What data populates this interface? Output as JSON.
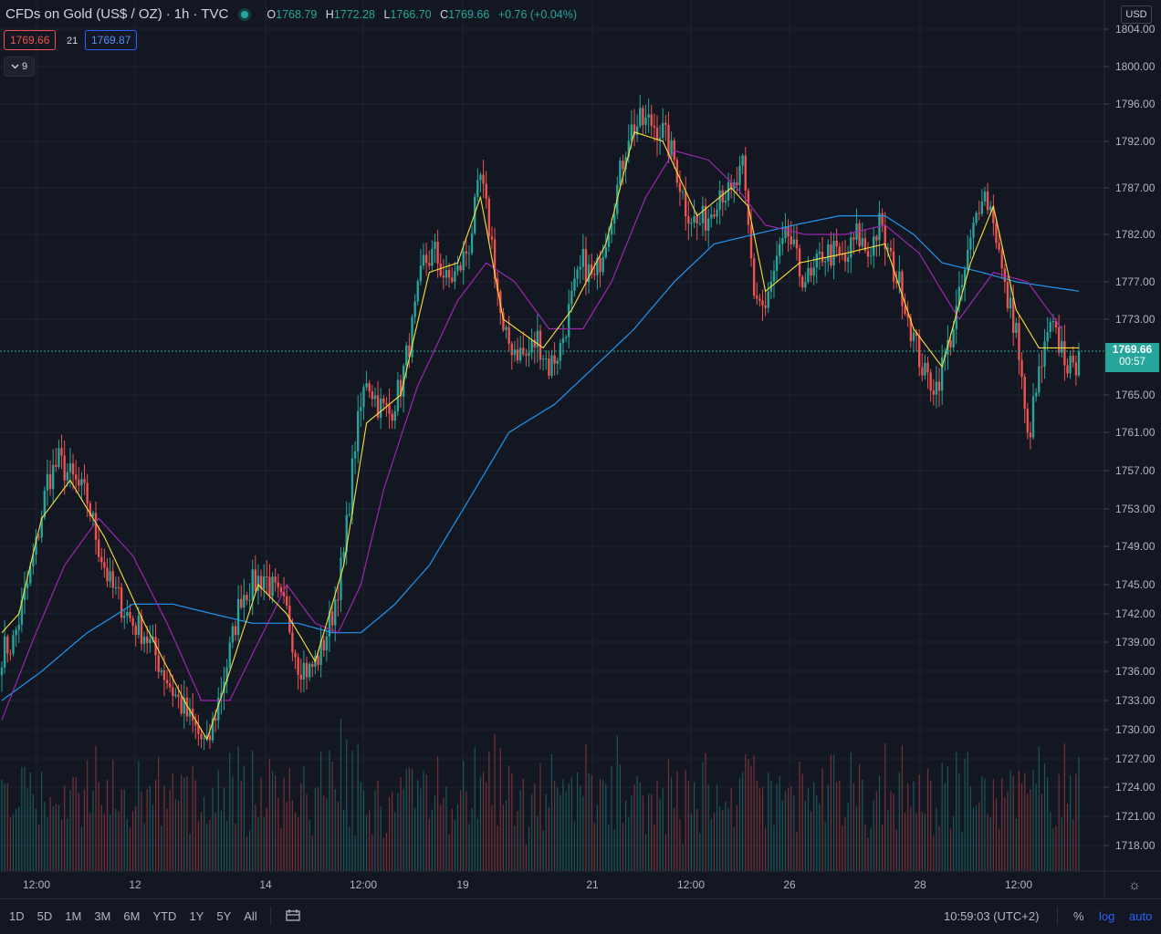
{
  "header": {
    "symbol": "CFDs on Gold (US$ / OZ)",
    "interval": "1h",
    "exchange": "TVC",
    "separator": "·",
    "o_label": "O",
    "o_value": "1768.79",
    "h_label": "H",
    "h_value": "1772.28",
    "l_label": "L",
    "l_value": "1766.70",
    "c_label": "C",
    "c_value": "1769.66",
    "change": "+0.76 (+0.04%)"
  },
  "quote": {
    "bid": "1769.66",
    "spread": "21",
    "ask": "1769.87"
  },
  "legend_toggle": {
    "count": "9",
    "icon": "chevron-down-icon"
  },
  "currency": "USD",
  "last_price": {
    "price": "1769.66",
    "countdown": "00:57"
  },
  "bottom_bar": {
    "ranges": [
      "1D",
      "5D",
      "1M",
      "3M",
      "6M",
      "YTD",
      "1Y",
      "5Y",
      "All"
    ],
    "time": "10:59:03 (UTC+2)",
    "percent": "%",
    "log": "log",
    "auto": "auto"
  },
  "colors": {
    "background": "#131722",
    "up": "#26a69a",
    "down": "#ef5350",
    "ma_fast": "#fbe13b",
    "ma_mid": "#9c27b0",
    "ma_slow": "#2196f3",
    "grid": "#1f2330"
  },
  "chart_data": {
    "type": "candlestick",
    "y_ticks": [
      "1804.00",
      "1800.00",
      "1796.00",
      "1792.00",
      "1787.00",
      "1782.00",
      "1777.00",
      "1773.00",
      "1769.66",
      "1765.00",
      "1761.00",
      "1757.00",
      "1753.00",
      "1749.00",
      "1745.00",
      "1742.00",
      "1739.00",
      "1736.00",
      "1733.00",
      "1730.00",
      "1727.00",
      "1724.00",
      "1721.00",
      "1718.00"
    ],
    "x_ticks": [
      "12:00",
      "12",
      "14",
      "12:00",
      "19",
      "21",
      "12:00",
      "26",
      "28",
      "12:00"
    ],
    "ylim": [
      1716,
      1806
    ],
    "keypoints": [
      [
        0,
        1738
      ],
      [
        4,
        1739
      ],
      [
        9,
        1745
      ],
      [
        12,
        1749
      ],
      [
        16,
        1756
      ],
      [
        20,
        1758
      ],
      [
        25,
        1756
      ],
      [
        30,
        1754
      ],
      [
        34,
        1749
      ],
      [
        38,
        1745
      ],
      [
        42,
        1743
      ],
      [
        46,
        1741
      ],
      [
        50,
        1740
      ],
      [
        55,
        1737
      ],
      [
        60,
        1734
      ],
      [
        64,
        1732
      ],
      [
        68,
        1730
      ],
      [
        72,
        1728
      ],
      [
        76,
        1733
      ],
      [
        80,
        1738
      ],
      [
        84,
        1744
      ],
      [
        88,
        1745
      ],
      [
        92,
        1746
      ],
      [
        96,
        1744
      ],
      [
        100,
        1742
      ],
      [
        104,
        1737
      ],
      [
        108,
        1736
      ],
      [
        112,
        1738
      ],
      [
        116,
        1742
      ],
      [
        120,
        1748
      ],
      [
        124,
        1760
      ],
      [
        128,
        1767
      ],
      [
        132,
        1764
      ],
      [
        136,
        1763
      ],
      [
        140,
        1766
      ],
      [
        144,
        1772
      ],
      [
        148,
        1779
      ],
      [
        152,
        1780
      ],
      [
        156,
        1777
      ],
      [
        160,
        1778
      ],
      [
        164,
        1781
      ],
      [
        168,
        1788
      ],
      [
        172,
        1781
      ],
      [
        176,
        1771
      ],
      [
        180,
        1770
      ],
      [
        184,
        1769
      ],
      [
        188,
        1771
      ],
      [
        192,
        1768
      ],
      [
        196,
        1770
      ],
      [
        200,
        1775
      ],
      [
        204,
        1779
      ],
      [
        208,
        1777
      ],
      [
        212,
        1782
      ],
      [
        216,
        1787
      ],
      [
        220,
        1793
      ],
      [
        224,
        1794
      ],
      [
        228,
        1794
      ],
      [
        232,
        1793
      ],
      [
        236,
        1790
      ],
      [
        240,
        1785
      ],
      [
        244,
        1783
      ],
      [
        248,
        1784
      ],
      [
        252,
        1787
      ],
      [
        256,
        1786
      ],
      [
        260,
        1789
      ],
      [
        264,
        1776
      ],
      [
        268,
        1774
      ],
      [
        272,
        1779
      ],
      [
        276,
        1782
      ],
      [
        280,
        1778
      ],
      [
        284,
        1777
      ],
      [
        288,
        1780
      ],
      [
        292,
        1780
      ],
      [
        296,
        1779
      ],
      [
        300,
        1782
      ],
      [
        304,
        1780
      ],
      [
        308,
        1783
      ],
      [
        312,
        1779
      ],
      [
        316,
        1776
      ],
      [
        320,
        1771
      ],
      [
        324,
        1767
      ],
      [
        328,
        1766
      ],
      [
        332,
        1770
      ],
      [
        336,
        1775
      ],
      [
        340,
        1781
      ],
      [
        344,
        1787
      ],
      [
        348,
        1784
      ],
      [
        352,
        1776
      ],
      [
        356,
        1772
      ],
      [
        360,
        1760
      ],
      [
        364,
        1767
      ],
      [
        368,
        1772
      ],
      [
        372,
        1770
      ],
      [
        376,
        1767
      ],
      [
        378,
        1770
      ]
    ],
    "ma_fast_points": [
      [
        0,
        1740
      ],
      [
        6,
        1742
      ],
      [
        14,
        1752
      ],
      [
        24,
        1756
      ],
      [
        36,
        1750
      ],
      [
        50,
        1741
      ],
      [
        64,
        1733
      ],
      [
        72,
        1729
      ],
      [
        80,
        1736
      ],
      [
        90,
        1745
      ],
      [
        100,
        1742
      ],
      [
        110,
        1737
      ],
      [
        120,
        1747
      ],
      [
        128,
        1762
      ],
      [
        140,
        1765
      ],
      [
        150,
        1778
      ],
      [
        160,
        1779
      ],
      [
        168,
        1786
      ],
      [
        176,
        1773
      ],
      [
        190,
        1770
      ],
      [
        200,
        1774
      ],
      [
        212,
        1781
      ],
      [
        222,
        1793
      ],
      [
        232,
        1792
      ],
      [
        244,
        1784
      ],
      [
        256,
        1787
      ],
      [
        262,
        1785
      ],
      [
        268,
        1776
      ],
      [
        280,
        1779
      ],
      [
        296,
        1780
      ],
      [
        310,
        1781
      ],
      [
        320,
        1772
      ],
      [
        330,
        1768
      ],
      [
        340,
        1779
      ],
      [
        348,
        1785
      ],
      [
        356,
        1774
      ],
      [
        364,
        1770
      ],
      [
        372,
        1770
      ],
      [
        378,
        1770
      ]
    ],
    "ma_mid_points": [
      [
        0,
        1731
      ],
      [
        12,
        1740
      ],
      [
        22,
        1747
      ],
      [
        34,
        1752
      ],
      [
        46,
        1748
      ],
      [
        58,
        1741
      ],
      [
        70,
        1733
      ],
      [
        80,
        1733
      ],
      [
        90,
        1739
      ],
      [
        100,
        1745
      ],
      [
        110,
        1741
      ],
      [
        118,
        1740
      ],
      [
        126,
        1745
      ],
      [
        134,
        1755
      ],
      [
        146,
        1766
      ],
      [
        160,
        1775
      ],
      [
        170,
        1779
      ],
      [
        180,
        1777
      ],
      [
        192,
        1772
      ],
      [
        204,
        1772
      ],
      [
        214,
        1777
      ],
      [
        226,
        1786
      ],
      [
        236,
        1791
      ],
      [
        248,
        1790
      ],
      [
        258,
        1787
      ],
      [
        268,
        1783
      ],
      [
        282,
        1782
      ],
      [
        296,
        1782
      ],
      [
        310,
        1783
      ],
      [
        322,
        1780
      ],
      [
        336,
        1773
      ],
      [
        348,
        1778
      ],
      [
        360,
        1777
      ],
      [
        372,
        1772
      ]
    ],
    "ma_slow_points": [
      [
        0,
        1733
      ],
      [
        14,
        1736
      ],
      [
        30,
        1740
      ],
      [
        46,
        1743
      ],
      [
        60,
        1743
      ],
      [
        74,
        1742
      ],
      [
        88,
        1741
      ],
      [
        104,
        1741
      ],
      [
        116,
        1740
      ],
      [
        126,
        1740
      ],
      [
        138,
        1743
      ],
      [
        150,
        1747
      ],
      [
        164,
        1754
      ],
      [
        178,
        1761
      ],
      [
        194,
        1764
      ],
      [
        208,
        1768
      ],
      [
        222,
        1772
      ],
      [
        236,
        1777
      ],
      [
        250,
        1781
      ],
      [
        264,
        1782
      ],
      [
        278,
        1783
      ],
      [
        294,
        1784
      ],
      [
        310,
        1784
      ],
      [
        320,
        1782
      ],
      [
        330,
        1779
      ],
      [
        344,
        1778
      ],
      [
        356,
        1777
      ],
      [
        378,
        1776
      ]
    ]
  }
}
